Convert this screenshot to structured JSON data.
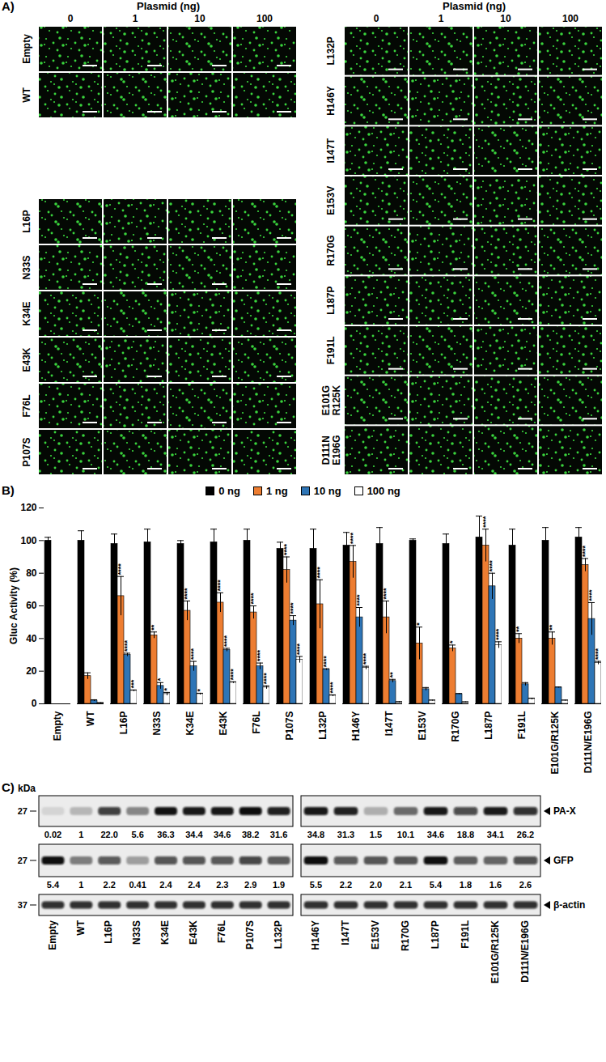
{
  "panel_a": {
    "title": "A)",
    "header": "Plasmid (ng)",
    "columns": [
      0,
      1,
      10,
      100
    ],
    "left_groups": [
      [
        [
          "Empty"
        ],
        [
          "WT"
        ]
      ],
      [
        [
          "L16P"
        ],
        [
          "N33S"
        ],
        [
          "K34E"
        ],
        [
          "E43K"
        ],
        [
          "F76L"
        ],
        [
          "P107S"
        ]
      ]
    ],
    "right_rows": [
      [
        "L132P"
      ],
      [
        "H146Y"
      ],
      [
        "I147T"
      ],
      [
        "E153V"
      ],
      [
        "R170G"
      ],
      [
        "L187P"
      ],
      [
        "F191L"
      ],
      [
        "E101G",
        "R125K"
      ],
      [
        "D111N",
        "E196G"
      ]
    ]
  },
  "chart_data": {
    "type": "bar",
    "title": "B)",
    "y_label": "Gluc Activity (%)",
    "categories": [
      "Empty",
      "WT",
      "L16P",
      "N33S",
      "K34E",
      "E43K",
      "F76L",
      "P107S",
      "L132P",
      "H146Y",
      "I147T",
      "E153V",
      "R170G",
      "L187P",
      "F191L",
      "E101G/R125K",
      "D111N/E196G"
    ],
    "ylim": [
      0,
      120
    ],
    "yticks": [
      0,
      20,
      40,
      60,
      80,
      100,
      120
    ],
    "legend": "top",
    "series": [
      {
        "name": "0 ng",
        "color": "#000000",
        "values": [
          100,
          100,
          98,
          99,
          98,
          99,
          100,
          95,
          95,
          97,
          98,
          100,
          98,
          102,
          97,
          100,
          102
        ],
        "errors": [
          2,
          6,
          6,
          8,
          2,
          8,
          7,
          4,
          12,
          8,
          10,
          1,
          6,
          13,
          10,
          8,
          6
        ]
      },
      {
        "name": "1 ng",
        "color": "#ED7D31",
        "values": [
          null,
          17,
          66,
          42,
          57,
          62,
          56,
          82,
          61,
          87,
          53,
          37,
          34,
          97,
          40,
          40,
          85
        ],
        "errors": [
          null,
          2,
          12,
          2,
          6,
          6,
          4,
          8,
          15,
          10,
          10,
          10,
          2,
          10,
          3,
          4,
          4
        ],
        "significance": [
          null,
          null,
          "****",
          "**",
          "****",
          "****",
          "****",
          "****",
          "****",
          "****",
          "****",
          "*",
          "*",
          "****",
          "**",
          "**",
          "****"
        ]
      },
      {
        "name": "10 ng",
        "color": "#2E75B6",
        "values": [
          null,
          2,
          30,
          11,
          23,
          33,
          23,
          51,
          21,
          53,
          14,
          9,
          6,
          72,
          12,
          10,
          52
        ],
        "errors": [
          null,
          0.5,
          1,
          2,
          3,
          1,
          2,
          3,
          0.5,
          6,
          1,
          1,
          0.3,
          8,
          1,
          0.3,
          10
        ],
        "significance": [
          null,
          null,
          "****",
          "*",
          "****",
          "****",
          "****",
          "****",
          "****",
          "****",
          "**",
          null,
          null,
          "****",
          null,
          null,
          "****"
        ]
      },
      {
        "name": "100 ng",
        "color": "#FFFFFF",
        "values": [
          null,
          0.5,
          8,
          6,
          6,
          13,
          10,
          27,
          5,
          22,
          1,
          2,
          1,
          36,
          3,
          2,
          25
        ],
        "errors": [
          null,
          0.2,
          0.5,
          1,
          0.5,
          0.5,
          1,
          2,
          0.5,
          1,
          0.3,
          0.3,
          0.2,
          2,
          0.5,
          0.3,
          1
        ],
        "significance": [
          null,
          null,
          "***",
          "*",
          "*",
          "****",
          "****",
          "****",
          "****",
          "****",
          null,
          null,
          null,
          "****",
          null,
          null,
          "****"
        ]
      }
    ]
  },
  "panel_c": {
    "title": "C)",
    "unit": "kDa",
    "lanes": [
      [
        "Empty",
        "WT",
        "L16P",
        "N33S",
        "K34E",
        "E43K",
        "F76L",
        "P107S",
        "L132P"
      ],
      [
        "H146Y",
        "I147T",
        "E153V",
        "R170G",
        "L187P",
        "F191L",
        "E101G/R125K",
        "D111N/E196G"
      ]
    ],
    "rows": [
      {
        "name": "PA-X",
        "marker": 27,
        "values": [
          [
            0.02,
            1,
            22.0,
            5.6,
            36.3,
            34.4,
            34.6,
            38.2,
            31.6
          ],
          [
            34.8,
            31.3,
            1.5,
            10.1,
            34.6,
            18.8,
            34.1,
            26.2
          ]
        ],
        "value_labels": [
          [
            "0.02",
            "1",
            "22.0",
            "5.6",
            "36.3",
            "34.4",
            "34.6",
            "38.2",
            "31.6"
          ],
          [
            "34.8",
            "31.3",
            "1.5",
            "10.1",
            "34.6",
            "18.8",
            "34.1",
            "26.2"
          ]
        ]
      },
      {
        "name": "GFP",
        "marker": 27,
        "values": [
          [
            5.4,
            1,
            2.2,
            0.41,
            2.4,
            2.4,
            2.3,
            2.9,
            1.9
          ],
          [
            5.5,
            2.2,
            2.0,
            2.1,
            5.4,
            1.8,
            1.6,
            2.6
          ]
        ],
        "value_labels": [
          [
            "5.4",
            "1",
            "2.2",
            "0.41",
            "2.4",
            "2.4",
            "2.3",
            "2.9",
            "1.9"
          ],
          [
            "5.5",
            "2.2",
            "2.0",
            "2.1",
            "5.4",
            "1.8",
            "1.6",
            "2.6"
          ]
        ]
      },
      {
        "name": "β-actin",
        "marker": 37
      }
    ]
  }
}
